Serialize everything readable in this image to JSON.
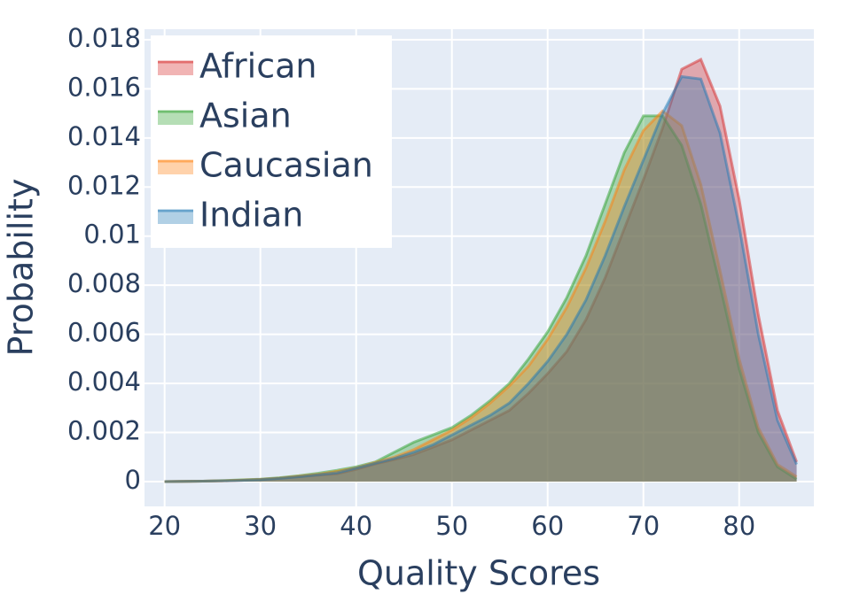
{
  "chart_data": {
    "type": "area",
    "x_label": "Quality Scores",
    "y_label": "Probability",
    "x": [
      20,
      22,
      24,
      26,
      28,
      30,
      32,
      34,
      36,
      38,
      40,
      42,
      44,
      46,
      48,
      50,
      52,
      54,
      56,
      58,
      60,
      62,
      64,
      66,
      68,
      70,
      72,
      74,
      76,
      78,
      80,
      82,
      84,
      86
    ],
    "series": [
      {
        "name": "African",
        "color": "#d62728",
        "values": [
          0,
          1e-05,
          2e-05,
          3e-05,
          5e-05,
          8e-05,
          0.00013,
          0.0002,
          0.00026,
          0.00032,
          0.0005,
          0.00072,
          0.0009,
          0.0011,
          0.0014,
          0.0017,
          0.0021,
          0.0025,
          0.0029,
          0.0036,
          0.0044,
          0.0053,
          0.0066,
          0.0083,
          0.0103,
          0.0123,
          0.0144,
          0.0168,
          0.0172,
          0.0153,
          0.0115,
          0.0068,
          0.0029,
          0.0008
        ]
      },
      {
        "name": "Asian",
        "color": "#2ca02c",
        "values": [
          0,
          1e-05,
          2e-05,
          4e-05,
          7e-05,
          0.0001,
          0.00016,
          0.00024,
          0.00034,
          0.00046,
          0.0006,
          0.0008,
          0.0012,
          0.0016,
          0.0019,
          0.0022,
          0.0027,
          0.0033,
          0.004,
          0.005,
          0.0061,
          0.0075,
          0.0092,
          0.0113,
          0.0134,
          0.0149,
          0.0149,
          0.0137,
          0.0113,
          0.008,
          0.0046,
          0.002,
          0.0006,
          0.0001
        ]
      },
      {
        "name": "Caucasian",
        "color": "#ff7f0e",
        "values": [
          0,
          1e-05,
          2e-05,
          3e-05,
          6e-05,
          9e-05,
          0.00014,
          0.00022,
          0.0003,
          0.00042,
          0.00056,
          0.00078,
          0.001,
          0.0013,
          0.0017,
          0.0021,
          0.0026,
          0.0032,
          0.0039,
          0.0047,
          0.0058,
          0.0071,
          0.0087,
          0.0106,
          0.0127,
          0.0143,
          0.0151,
          0.0145,
          0.0121,
          0.0086,
          0.005,
          0.0022,
          0.0007,
          0.0002
        ]
      },
      {
        "name": "Indian",
        "color": "#1f77b4",
        "values": [
          0,
          1e-05,
          2e-05,
          3e-05,
          5e-05,
          8e-05,
          0.00013,
          0.0002,
          0.00028,
          0.00036,
          0.00055,
          0.00075,
          0.00095,
          0.0012,
          0.0015,
          0.0019,
          0.0023,
          0.0027,
          0.0032,
          0.004,
          0.0049,
          0.006,
          0.0074,
          0.0092,
          0.0112,
          0.0131,
          0.015,
          0.0165,
          0.0164,
          0.0142,
          0.0104,
          0.006,
          0.0025,
          0.0007
        ]
      }
    ],
    "xlim": [
      17.9,
      87.8
    ],
    "xticks": [
      20,
      30,
      40,
      50,
      60,
      70,
      80
    ],
    "ylim": [
      -0.00101,
      0.01843
    ],
    "yticks": [
      0,
      0.002,
      0.004,
      0.006,
      0.008,
      0.01,
      0.012,
      0.014,
      0.016,
      0.018
    ],
    "grid": true,
    "legend": "top-left"
  }
}
